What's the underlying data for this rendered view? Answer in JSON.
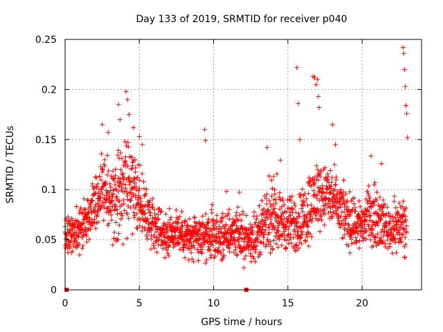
{
  "chart_data": {
    "type": "scatter",
    "title": "Day 133 of 2019, SRMTID for receiver p040",
    "xlabel": "GPS time / hours",
    "ylabel": "SRMTID / TECUs",
    "xlim": [
      0,
      24
    ],
    "ylim": [
      0,
      0.25
    ],
    "x_ticks": [
      0,
      5,
      10,
      15,
      20
    ],
    "x_tick_labels": [
      "0",
      "5",
      "10",
      "15",
      "20"
    ],
    "y_ticks": [
      0,
      0.05,
      0.1,
      0.15,
      0.2,
      0.25
    ],
    "y_tick_labels": [
      "0",
      "0.05",
      "0.1",
      "0.15",
      "0.2",
      "0.25"
    ],
    "grid": true,
    "marker": "plus",
    "color": "#ff0000",
    "zero_value_markers": [
      0.1,
      12.2
    ],
    "series": [
      {
        "name": "SRMTID",
        "envelope_hours": [
          0,
          0.5,
          1,
          1.5,
          2,
          2.5,
          3,
          3.5,
          4,
          4.5,
          5,
          5.5,
          6,
          6.5,
          7,
          7.5,
          8,
          8.5,
          9,
          9.5,
          10,
          10.5,
          11,
          11.5,
          12,
          12.5,
          13,
          13.5,
          14,
          14.5,
          15,
          15.5,
          16,
          16.5,
          17,
          17.5,
          18,
          18.5,
          19,
          19.5,
          20,
          20.5,
          21,
          21.5,
          22,
          22.5,
          23
        ],
        "envelope_center": [
          0.055,
          0.055,
          0.06,
          0.07,
          0.09,
          0.1,
          0.085,
          0.09,
          0.105,
          0.1,
          0.085,
          0.075,
          0.065,
          0.06,
          0.055,
          0.06,
          0.055,
          0.05,
          0.05,
          0.055,
          0.05,
          0.05,
          0.055,
          0.06,
          0.05,
          0.05,
          0.055,
          0.065,
          0.07,
          0.07,
          0.065,
          0.065,
          0.07,
          0.085,
          0.095,
          0.095,
          0.09,
          0.08,
          0.07,
          0.065,
          0.065,
          0.075,
          0.07,
          0.065,
          0.06,
          0.065,
          0.065
        ],
        "envelope_spread": [
          0.015,
          0.02,
          0.02,
          0.025,
          0.03,
          0.035,
          0.03,
          0.035,
          0.04,
          0.035,
          0.03,
          0.025,
          0.02,
          0.02,
          0.02,
          0.02,
          0.02,
          0.02,
          0.02,
          0.02,
          0.02,
          0.02,
          0.02,
          0.02,
          0.02,
          0.02,
          0.02,
          0.025,
          0.025,
          0.025,
          0.025,
          0.025,
          0.03,
          0.03,
          0.03,
          0.03,
          0.025,
          0.025,
          0.025,
          0.025,
          0.025,
          0.025,
          0.025,
          0.02,
          0.02,
          0.025,
          0.025
        ],
        "spikes": [
          {
            "x": 2.5,
            "y": 0.165
          },
          {
            "x": 3.6,
            "y": 0.185
          },
          {
            "x": 3.7,
            "y": 0.17
          },
          {
            "x": 4.1,
            "y": 0.198
          },
          {
            "x": 4.2,
            "y": 0.19
          },
          {
            "x": 4.3,
            "y": 0.175
          },
          {
            "x": 4.6,
            "y": 0.162
          },
          {
            "x": 5.0,
            "y": 0.153
          },
          {
            "x": 5.2,
            "y": 0.145
          },
          {
            "x": 9.4,
            "y": 0.16
          },
          {
            "x": 9.45,
            "y": 0.149
          },
          {
            "x": 13.6,
            "y": 0.142
          },
          {
            "x": 15.6,
            "y": 0.222
          },
          {
            "x": 15.7,
            "y": 0.186
          },
          {
            "x": 15.8,
            "y": 0.15
          },
          {
            "x": 16.7,
            "y": 0.213
          },
          {
            "x": 16.8,
            "y": 0.212
          },
          {
            "x": 16.9,
            "y": 0.205
          },
          {
            "x": 17.0,
            "y": 0.21
          },
          {
            "x": 17.05,
            "y": 0.193
          },
          {
            "x": 17.1,
            "y": 0.182
          },
          {
            "x": 18.0,
            "y": 0.165
          },
          {
            "x": 18.2,
            "y": 0.145
          },
          {
            "x": 21.3,
            "y": 0.126
          },
          {
            "x": 22.75,
            "y": 0.242
          },
          {
            "x": 22.8,
            "y": 0.236
          },
          {
            "x": 22.85,
            "y": 0.22
          },
          {
            "x": 22.9,
            "y": 0.203
          },
          {
            "x": 22.95,
            "y": 0.184
          },
          {
            "x": 23.0,
            "y": 0.176
          },
          {
            "x": 23.05,
            "y": 0.152
          }
        ]
      }
    ]
  }
}
